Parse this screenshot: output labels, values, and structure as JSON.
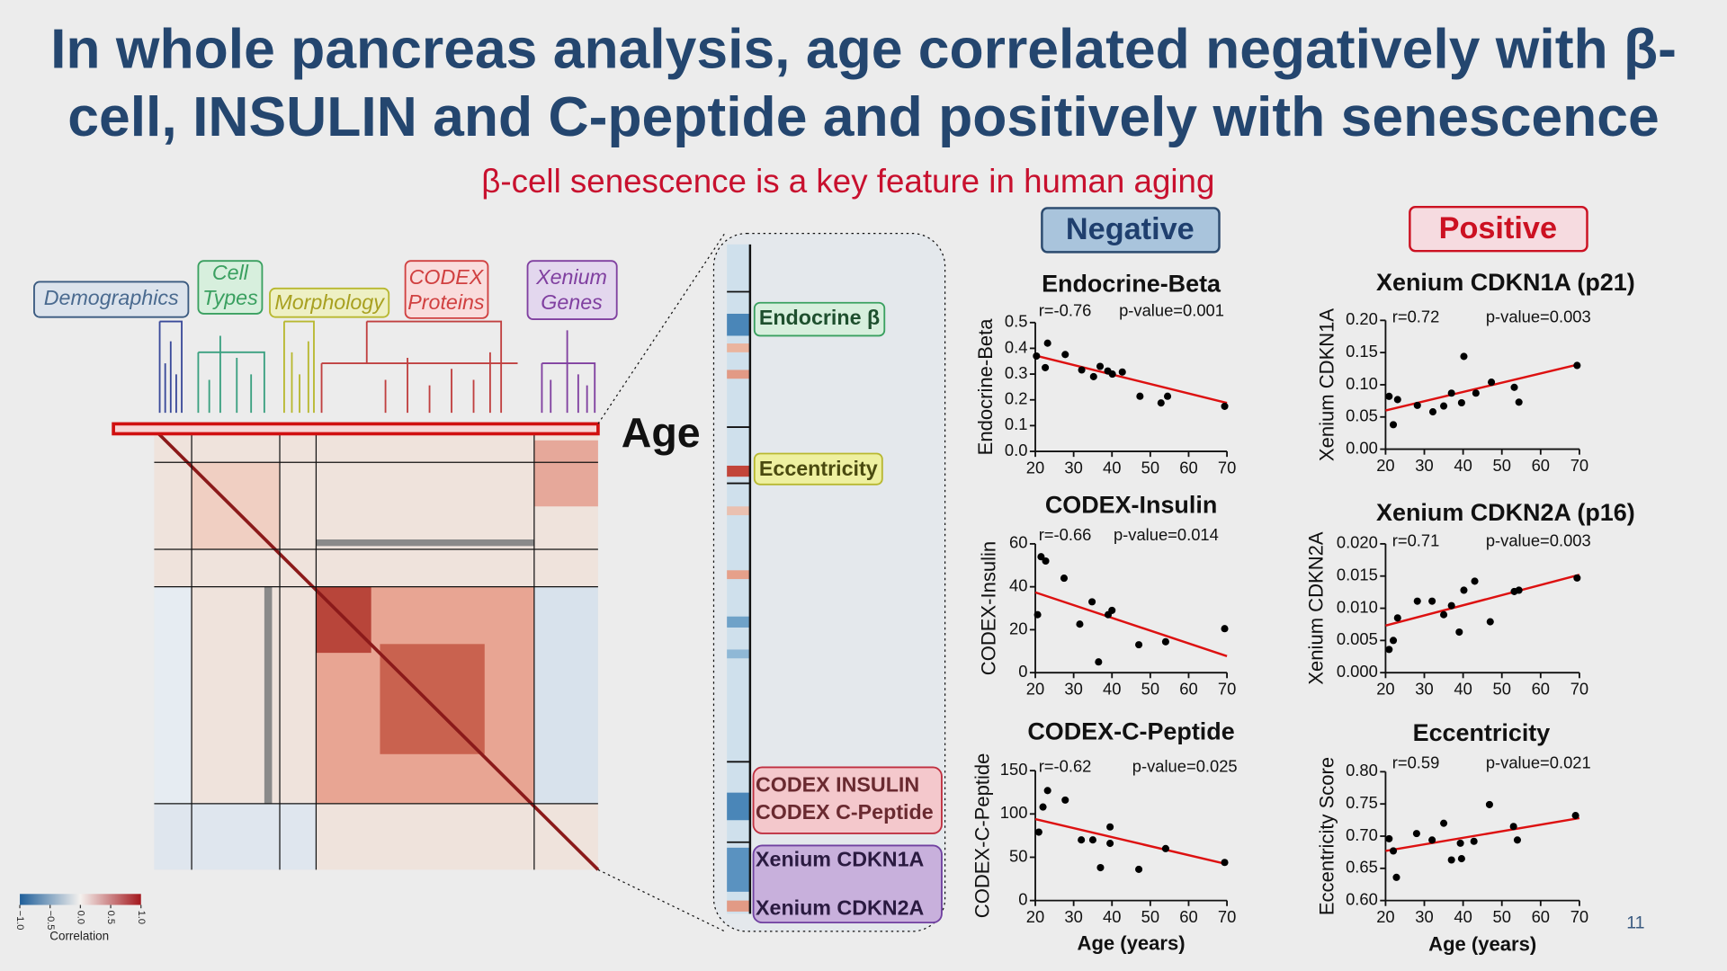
{
  "slide": {
    "title_lines": [
      "In whole pancreas analysis, age correlated negatively with β-",
      "cell, INSULIN and C-peptide and positively with senescence"
    ],
    "subtitle": "β-cell senescence is a key feature in human aging",
    "negative": "Negative",
    "positive": "Positive",
    "age": "Age",
    "groups": {
      "demographics": "Demographics",
      "cell_types": [
        "Cell",
        "Types"
      ],
      "morphology": "Morphology",
      "codex": [
        "CODEX",
        "Proteins"
      ],
      "xenium": [
        "Xenium",
        "Genes"
      ]
    },
    "strip_labels": {
      "endocrine": "Endocrine β",
      "eccentricity": "Eccentricity",
      "codex": [
        "CODEX INSULIN",
        "CODEX C-Peptide"
      ],
      "xenium": [
        "Xenium CDKN1A",
        "Xenium CDKN2A"
      ]
    },
    "page_number": "11"
  },
  "heatmap": {
    "colorbar_label": "Correlation",
    "colorbar_lim": [
      -1,
      1
    ],
    "colorbar_ticks": [
      {
        "value": -1,
        "label": "−1.0"
      },
      {
        "value": -0.5,
        "label": "−0.5"
      },
      {
        "value": 0,
        "label": "0.0"
      },
      {
        "value": 0.5,
        "label": "0.5"
      },
      {
        "value": 1,
        "label": "1.0"
      }
    ]
  },
  "chart_data": [
    {
      "type": "scatter",
      "title": "Endocrine-Beta",
      "y_label": "Endocrine-Beta",
      "annotations": [
        "r=-0.76",
        "p-value=0.001"
      ],
      "x": [
        20.3,
        22.6,
        23.2,
        27.8,
        32.1,
        35.2,
        36.9,
        38.9,
        40.1,
        42.7,
        47.3,
        52.8,
        54.5,
        69.4
      ],
      "values": [
        0.37,
        0.325,
        0.42,
        0.376,
        0.316,
        0.29,
        0.33,
        0.312,
        0.3,
        0.308,
        0.214,
        0.188,
        0.214,
        0.175
      ],
      "color": "#000000",
      "fit": {
        "x": [
          20,
          70
        ],
        "values": [
          0.372,
          0.188
        ],
        "color": "#dd1111"
      },
      "xlim": [
        20,
        70
      ],
      "xticks": [
        20,
        30,
        40,
        50,
        60,
        70
      ],
      "ylim": [
        0,
        0.5
      ],
      "yticks": [
        {
          "value": 0,
          "label": "0.0"
        },
        0.1,
        0.2,
        0.3,
        0.4,
        0.5
      ]
    },
    {
      "type": "scatter",
      "title": "CODEX-Insulin",
      "y_label": "CODEX-Insulin",
      "annotations": [
        "r=-0.66",
        "p-value=0.014"
      ],
      "x": [
        20.6,
        21.5,
        22.7,
        27.5,
        31.6,
        34.8,
        36.5,
        39,
        40,
        47,
        54,
        69.4
      ],
      "values": [
        27,
        54,
        52,
        44,
        22.6,
        33,
        5,
        27,
        29,
        13,
        14.4,
        20.5
      ],
      "color": "#000000",
      "fit": {
        "x": [
          20,
          70
        ],
        "values": [
          37.4,
          7.7
        ],
        "color": "#dd1111"
      },
      "xlim": [
        20,
        70
      ],
      "xticks": [
        20,
        30,
        40,
        50,
        60,
        70
      ],
      "ylim": [
        0,
        60
      ],
      "yticks": [
        0,
        20,
        40,
        60
      ]
    },
    {
      "type": "scatter",
      "title": "CODEX-C-Peptide",
      "y_label": "CODEX-C-Peptide",
      "x_label": "Age (years)",
      "annotations": [
        "r=-0.62",
        "p-value=0.025"
      ],
      "x": [
        20.9,
        22,
        23.2,
        27.8,
        32,
        35,
        37,
        39.5,
        39.5,
        47,
        54,
        69.4
      ],
      "values": [
        79,
        108,
        127,
        116,
        70,
        70,
        38,
        85,
        66,
        36,
        60,
        44
      ],
      "color": "#000000",
      "fit": {
        "x": [
          20,
          70
        ],
        "values": [
          94,
          42
        ],
        "color": "#dd1111"
      },
      "xlim": [
        20,
        70
      ],
      "xticks": [
        20,
        30,
        40,
        50,
        60,
        70
      ],
      "ylim": [
        0,
        150
      ],
      "yticks": [
        0,
        50,
        100,
        150
      ]
    },
    {
      "type": "scatter",
      "title": "Xenium CDKN1A (p21)",
      "y_label": "Xenium CDKN1A",
      "annotations": [
        "r=0.72",
        "p-value=0.003"
      ],
      "x": [
        20.9,
        22,
        23.1,
        28.2,
        32.2,
        35,
        37,
        39.6,
        40.2,
        43.3,
        47.3,
        53.2,
        54.4,
        69.4
      ],
      "values": [
        0.082,
        0.038,
        0.077,
        0.068,
        0.058,
        0.067,
        0.087,
        0.072,
        0.144,
        0.087,
        0.104,
        0.096,
        0.073,
        0.13
      ],
      "color": "#000000",
      "fit": {
        "x": [
          20,
          70
        ],
        "values": [
          0.06,
          0.132
        ],
        "color": "#dd1111"
      },
      "xlim": [
        20,
        70
      ],
      "xticks": [
        20,
        30,
        40,
        50,
        60,
        70
      ],
      "ylim": [
        0,
        0.2
      ],
      "yticks": [
        {
          "value": 0,
          "label": "0.00"
        },
        {
          "value": 0.05,
          "label": "0.05"
        },
        {
          "value": 0.1,
          "label": "0.10"
        },
        {
          "value": 0.15,
          "label": "0.15"
        },
        {
          "value": 0.2,
          "label": "0.20"
        }
      ]
    },
    {
      "type": "scatter",
      "title": "Xenium CDKN2A (p16)",
      "y_label": "Xenium CDKN2A",
      "annotations": [
        "r=0.71",
        "p-value=0.003"
      ],
      "x": [
        20.9,
        22,
        23.1,
        28.2,
        32,
        35,
        37,
        39,
        40.2,
        43,
        47,
        53.2,
        54.4,
        69.4
      ],
      "values": [
        0.0036,
        0.005,
        0.0085,
        0.0111,
        0.0111,
        0.009,
        0.0104,
        0.0063,
        0.0128,
        0.0142,
        0.0079,
        0.0126,
        0.0128,
        0.0147
      ],
      "color": "#000000",
      "fit": {
        "x": [
          20,
          70
        ],
        "values": [
          0.0073,
          0.0152
        ],
        "color": "#dd1111"
      },
      "xlim": [
        20,
        70
      ],
      "xticks": [
        20,
        30,
        40,
        50,
        60,
        70
      ],
      "ylim": [
        0,
        0.02
      ],
      "yticks": [
        {
          "value": 0,
          "label": "0.000"
        },
        {
          "value": 0.005,
          "label": "0.005"
        },
        {
          "value": 0.01,
          "label": "0.010"
        },
        {
          "value": 0.015,
          "label": "0.015"
        },
        {
          "value": 0.02,
          "label": "0.020"
        }
      ]
    },
    {
      "type": "scatter",
      "title": "Eccentricity",
      "y_label": "Eccentricity Score",
      "x_label": "Age (years)",
      "annotations": [
        "r=0.59",
        "p-value=0.021"
      ],
      "x": [
        20.9,
        22,
        22.8,
        28,
        32,
        35,
        37,
        39.3,
        39.6,
        42.8,
        46.8,
        53,
        54,
        69
      ],
      "values": [
        0.696,
        0.677,
        0.636,
        0.704,
        0.694,
        0.72,
        0.663,
        0.689,
        0.665,
        0.692,
        0.749,
        0.715,
        0.694,
        0.732
      ],
      "color": "#000000",
      "fit": {
        "x": [
          20,
          70
        ],
        "values": [
          0.677,
          0.728
        ],
        "color": "#dd1111"
      },
      "xlim": [
        20,
        70
      ],
      "xticks": [
        20,
        30,
        40,
        50,
        60,
        70
      ],
      "ylim": [
        0.6,
        0.8
      ],
      "yticks": [
        {
          "value": 0.6,
          "label": "0.60"
        },
        {
          "value": 0.65,
          "label": "0.65"
        },
        {
          "value": 0.7,
          "label": "0.70"
        },
        {
          "value": 0.75,
          "label": "0.75"
        },
        {
          "value": 0.8,
          "label": "0.80"
        }
      ]
    }
  ]
}
